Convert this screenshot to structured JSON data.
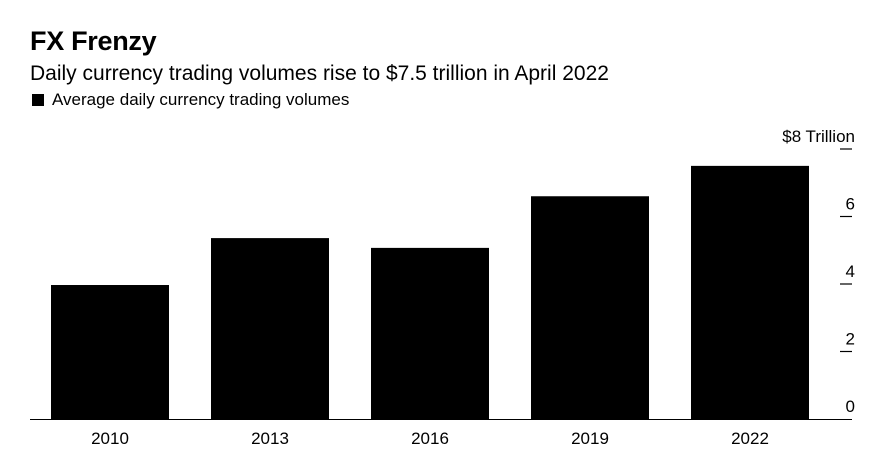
{
  "title": "FX Frenzy",
  "subtitle": "Daily currency trading volumes rise to $7.5 trillion in April 2022",
  "legend": {
    "label": "Average daily currency trading volumes",
    "color": "#000000"
  },
  "chart_data": {
    "type": "bar",
    "title": "FX Frenzy",
    "subtitle": "Daily currency trading volumes rise to $7.5 trillion in April 2022",
    "categories": [
      "2010",
      "2013",
      "2016",
      "2019",
      "2022"
    ],
    "series": [
      {
        "name": "Average daily currency trading volumes",
        "values": [
          3.97,
          5.36,
          5.07,
          6.6,
          7.5
        ],
        "color": "#000000"
      }
    ],
    "y_ticks": [
      {
        "value": 0,
        "label": "0"
      },
      {
        "value": 2,
        "label": "2"
      },
      {
        "value": 4,
        "label": "4"
      },
      {
        "value": 6,
        "label": "6"
      },
      {
        "value": 8,
        "label": "$8 Trillion"
      }
    ],
    "xlabel": "",
    "ylabel": "",
    "ylim": [
      0,
      8
    ],
    "y_axis_side": "right",
    "grid": false,
    "legend_position": "top-left"
  }
}
